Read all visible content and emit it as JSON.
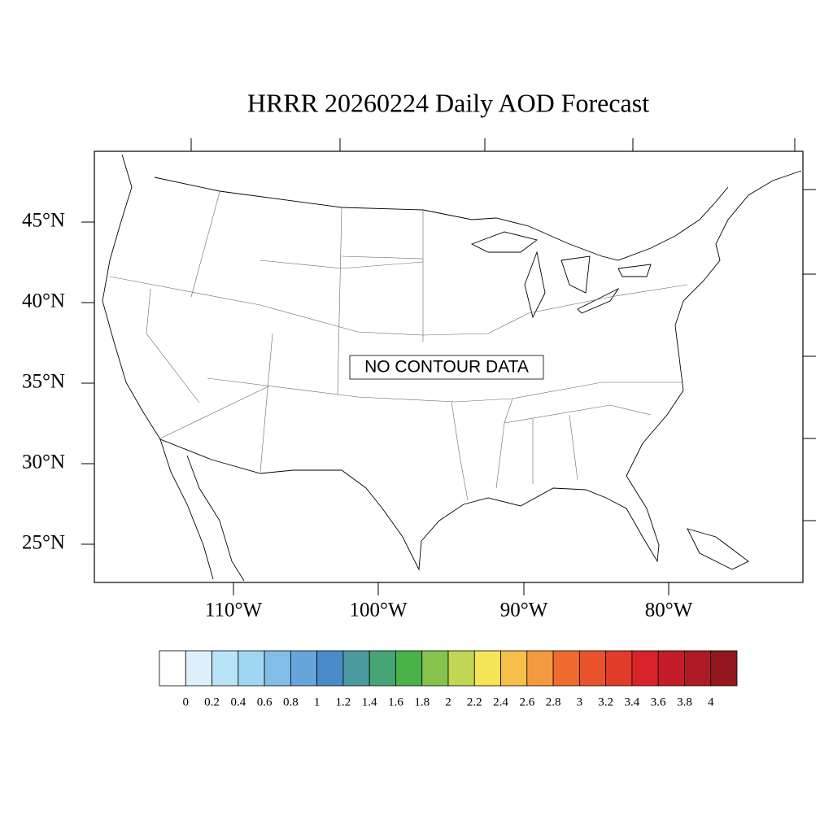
{
  "title": "HRRR 20260224 Daily AOD Forecast",
  "lat_labels": [
    "45°N",
    "40°N",
    "35°N",
    "30°N",
    "25°N"
  ],
  "lon_labels": [
    "110°W",
    "100°W",
    "90°W",
    "80°W"
  ],
  "message": "NO CONTOUR DATA",
  "colorbar": {
    "labels": [
      "0",
      "0.2",
      "0.4",
      "0.6",
      "0.8",
      "1",
      "1.2",
      "1.4",
      "1.6",
      "1.8",
      "2",
      "2.2",
      "2.4",
      "2.6",
      "2.8",
      "3",
      "3.2",
      "3.4",
      "3.6",
      "3.8",
      "4"
    ],
    "colors": [
      "#ffffff",
      "#ddf0fa",
      "#b9e3f7",
      "#9fd7f3",
      "#81bde6",
      "#67a6db",
      "#4a8bc9",
      "#4a9a9f",
      "#45a575",
      "#49b249",
      "#85c34c",
      "#c2d655",
      "#f5e557",
      "#f6bf4a",
      "#f49a3e",
      "#f06c2e",
      "#e9532c",
      "#e13b29",
      "#d8232b",
      "#c41c28",
      "#ad1a23",
      "#93171d"
    ]
  }
}
